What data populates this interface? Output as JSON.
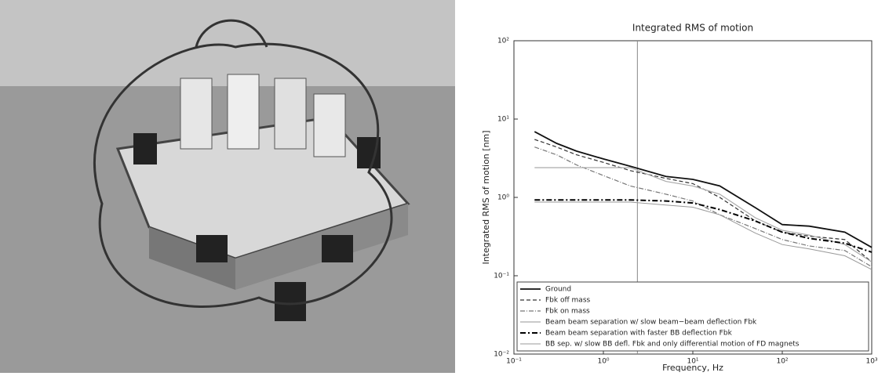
{
  "chart_data": {
    "type": "line",
    "title": "Integrated RMS of motion",
    "x_label": "Frequency, Hz",
    "y_label": "Integrated RMS of motion [nm]",
    "x_scale": "log",
    "y_scale": "log",
    "xlim": [
      0.1,
      1000
    ],
    "ylim": [
      0.01,
      100
    ],
    "xticks": [
      {
        "value": 0.1,
        "label": "10⁻¹"
      },
      {
        "value": 1,
        "label": "10⁰"
      },
      {
        "value": 10,
        "label": "10¹"
      },
      {
        "value": 100,
        "label": "10²"
      },
      {
        "value": 1000,
        "label": "10³"
      }
    ],
    "yticks": [
      {
        "value": 0.01,
        "label": "10⁻²"
      },
      {
        "value": 0.1,
        "label": "10⁻¹"
      },
      {
        "value": 1,
        "label": "10⁰"
      },
      {
        "value": 10,
        "label": "10¹"
      },
      {
        "value": 100,
        "label": "10²"
      }
    ],
    "vline": 2.4,
    "legend": "lower-left",
    "x": [
      0.17,
      0.3,
      0.5,
      1,
      2,
      5,
      10,
      20,
      50,
      100,
      200,
      500,
      1000
    ],
    "series": [
      {
        "name": "Ground",
        "color": "#111111",
        "dash": "none",
        "width": 1.8,
        "values": [
          6.9,
          4.9,
          3.9,
          3.1,
          2.5,
          1.85,
          1.7,
          1.4,
          0.74,
          0.45,
          0.43,
          0.36,
          0.23
        ]
      },
      {
        "name": "Fbk off mass",
        "color": "#333333",
        "dash": "5 3",
        "width": 1.2,
        "values": [
          5.5,
          4.4,
          3.5,
          2.8,
          2.2,
          1.75,
          1.5,
          1.0,
          0.5,
          0.36,
          0.32,
          0.29,
          0.15
        ]
      },
      {
        "name": "Fbk on mass",
        "color": "#777777",
        "dash": "6 2 1 2",
        "width": 1.2,
        "values": [
          4.4,
          3.5,
          2.6,
          1.9,
          1.4,
          1.1,
          0.9,
          0.6,
          0.4,
          0.29,
          0.24,
          0.21,
          0.13
        ]
      },
      {
        "name": "Beam beam separation w/ slow beam−beam deflection Fbk",
        "color": "#aaaaaa",
        "dash": "none",
        "width": 1.2,
        "values": [
          2.4,
          2.4,
          2.4,
          2.4,
          2.4,
          1.6,
          1.4,
          1.1,
          0.55,
          0.38,
          0.33,
          0.25,
          0.15
        ]
      },
      {
        "name": "Beam beam separation with faster BB deflection Fbk",
        "color": "#000000",
        "dash": "7 3 2 3",
        "width": 2,
        "values": [
          0.93,
          0.93,
          0.93,
          0.93,
          0.93,
          0.9,
          0.85,
          0.7,
          0.5,
          0.36,
          0.3,
          0.26,
          0.2
        ]
      },
      {
        "name": "BB sep. w/ slow BB defl. Fbk and only differential motion of FD magnets",
        "color": "#999999",
        "dash": "none",
        "width": 1,
        "values": [
          0.87,
          0.87,
          0.87,
          0.87,
          0.87,
          0.8,
          0.75,
          0.6,
          0.35,
          0.25,
          0.22,
          0.18,
          0.12
        ]
      }
    ]
  }
}
